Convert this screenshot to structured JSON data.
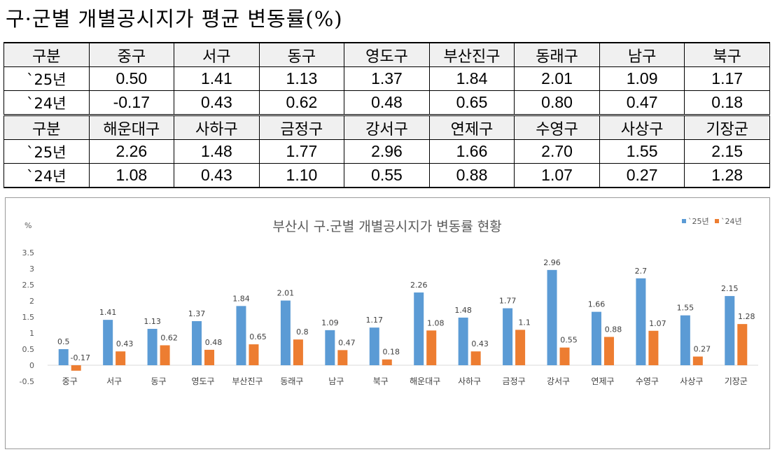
{
  "page_title": "구·군별 개별공시지가 평균 변동률(%)",
  "table": {
    "header_label": "구분",
    "groups": [
      {
        "districts": [
          "중구",
          "서구",
          "동구",
          "영도구",
          "부산진구",
          "동래구",
          "남구",
          "북구"
        ],
        "rows": [
          {
            "label": "`25년",
            "values": [
              "0.50",
              "1.41",
              "1.13",
              "1.37",
              "1.84",
              "2.01",
              "1.09",
              "1.17"
            ]
          },
          {
            "label": "`24년",
            "values": [
              "-0.17",
              "0.43",
              "0.62",
              "0.48",
              "0.65",
              "0.80",
              "0.47",
              "0.18"
            ]
          }
        ]
      },
      {
        "districts": [
          "해운대구",
          "사하구",
          "금정구",
          "강서구",
          "연제구",
          "수영구",
          "사상구",
          "기장군"
        ],
        "rows": [
          {
            "label": "`25년",
            "values": [
              "2.26",
              "1.48",
              "1.77",
              "2.96",
              "1.66",
              "2.70",
              "1.55",
              "2.15"
            ]
          },
          {
            "label": "`24년",
            "values": [
              "1.08",
              "0.43",
              "1.10",
              "0.55",
              "0.88",
              "1.07",
              "0.27",
              "1.28"
            ]
          }
        ]
      }
    ]
  },
  "chart_data": {
    "type": "bar",
    "title": "부산시 구.군별 개별공시지가 변동률 현황",
    "ylabel": "%",
    "xlabel": "",
    "ylim": [
      -0.5,
      3.5
    ],
    "yticks": [
      "-0.5",
      "0",
      "0.5",
      "1",
      "1.5",
      "2",
      "2.5",
      "3",
      "3.5"
    ],
    "grid": false,
    "legend_position": "top-right",
    "categories": [
      "중구",
      "서구",
      "동구",
      "영도구",
      "부산진구",
      "동래구",
      "남구",
      "북구",
      "해운대구",
      "사하구",
      "금정구",
      "강서구",
      "연제구",
      "수영구",
      "사상구",
      "기장군"
    ],
    "series": [
      {
        "name": "`25년",
        "color": "#5b9bd5",
        "values": [
          0.5,
          1.41,
          1.13,
          1.37,
          1.84,
          2.01,
          1.09,
          1.17,
          2.26,
          1.48,
          1.77,
          2.96,
          1.66,
          2.7,
          1.55,
          2.15
        ],
        "labels": [
          "0.5",
          "1.41",
          "1.13",
          "1.37",
          "1.84",
          "2.01",
          "1.09",
          "1.17",
          "2.26",
          "1.48",
          "1.77",
          "2.96",
          "1.66",
          "2.7",
          "1.55",
          "2.15"
        ]
      },
      {
        "name": "`24년",
        "color": "#ed7d31",
        "values": [
          -0.17,
          0.43,
          0.62,
          0.48,
          0.65,
          0.8,
          0.47,
          0.18,
          1.08,
          0.43,
          1.1,
          0.55,
          0.88,
          1.07,
          0.27,
          1.28
        ],
        "labels": [
          "-0.17",
          "0.43",
          "0.62",
          "0.48",
          "0.65",
          "0.8",
          "0.47",
          "0.18",
          "1.08",
          "0.43",
          "1.1",
          "0.55",
          "0.88",
          "1.07",
          "0.27",
          "1.28"
        ]
      }
    ]
  }
}
